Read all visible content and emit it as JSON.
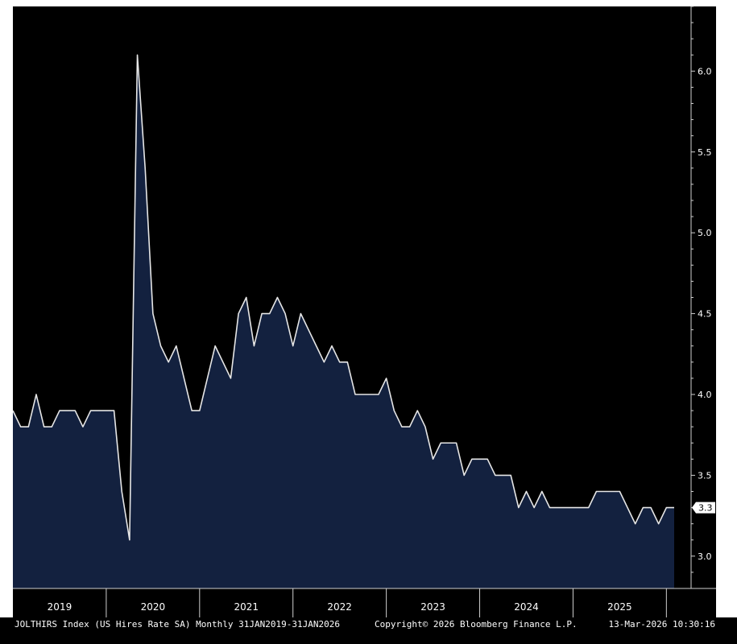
{
  "colors": {
    "background": "#000000",
    "area_fill": "#13213f",
    "line": "#e6e6e6",
    "axis": "#cfcfcf",
    "last_value_box": "#ffffff"
  },
  "footer": {
    "left": "JOLTHIRS Index (US Hires Rate SA) Monthly 31JAN2019-31JAN2026",
    "center": "Copyright© 2026 Bloomberg Finance L.P.",
    "right": "13-Mar-2026 10:30:16"
  },
  "chart_data": {
    "type": "area",
    "x_start": "2019-01",
    "x_end": "2026-01",
    "ylim": [
      2.8,
      6.4
    ],
    "y_ticks": [
      3.0,
      3.5,
      4.0,
      4.5,
      5.0,
      5.5,
      6.0
    ],
    "y_tick_labels": [
      "3.0",
      "3.5",
      "4.0",
      "4.5",
      "5.0",
      "5.5",
      "6.0"
    ],
    "year_labels": [
      "2019",
      "2020",
      "2021",
      "2022",
      "2023",
      "2024",
      "2025"
    ],
    "last_value_label": "3.3",
    "grid": false,
    "series": [
      {
        "values": [
          3.9,
          3.8,
          3.8,
          4.0,
          3.8,
          3.8,
          3.9,
          3.9,
          3.9,
          3.8,
          3.9,
          3.9,
          3.9,
          3.9,
          3.4,
          3.1,
          6.1,
          5.4,
          4.5,
          4.3,
          4.2,
          4.3,
          4.1,
          3.9,
          3.9,
          4.1,
          4.3,
          4.2,
          4.1,
          4.5,
          4.6,
          4.3,
          4.5,
          4.5,
          4.6,
          4.5,
          4.3,
          4.5,
          4.4,
          4.3,
          4.2,
          4.3,
          4.2,
          4.2,
          4.0,
          4.0,
          4.0,
          4.0,
          4.1,
          3.9,
          3.8,
          3.8,
          3.9,
          3.8,
          3.6,
          3.7,
          3.7,
          3.7,
          3.5,
          3.6,
          3.6,
          3.6,
          3.5,
          3.5,
          3.5,
          3.3,
          3.4,
          3.3,
          3.4,
          3.3,
          3.3,
          3.3,
          3.3,
          3.3,
          3.3,
          3.4,
          3.4,
          3.4,
          3.4,
          3.3,
          3.2,
          3.3,
          3.3,
          3.2,
          3.3,
          3.3
        ]
      }
    ]
  }
}
